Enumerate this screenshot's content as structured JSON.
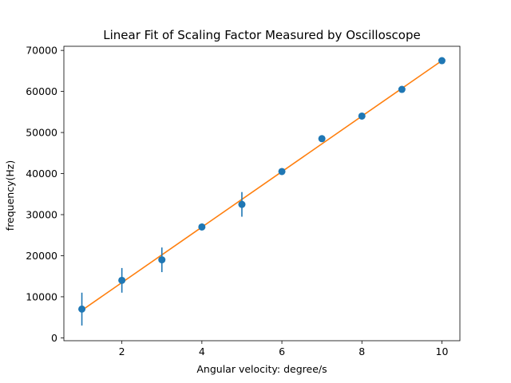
{
  "chart_data": {
    "type": "scatter",
    "title": "Linear Fit of Scaling Factor Measured by Oscilloscope",
    "xlabel": "Angular velocity: degree/s",
    "ylabel": "frequency(Hz)",
    "xlim": [
      0.55,
      10.45
    ],
    "ylim": [
      -700,
      71000
    ],
    "xticks": [
      2,
      4,
      6,
      8,
      10
    ],
    "xtick_labels": [
      "2",
      "4",
      "6",
      "8",
      "10"
    ],
    "yticks": [
      0,
      10000,
      20000,
      30000,
      40000,
      50000,
      60000,
      70000
    ],
    "ytick_labels": [
      "0",
      "10000",
      "20000",
      "30000",
      "40000",
      "50000",
      "60000",
      "70000"
    ],
    "grid": false,
    "series": [
      {
        "kind": "errorbar",
        "color": "#1f77b4",
        "x": [
          1,
          2,
          3,
          4,
          5,
          6,
          7,
          8,
          9,
          10
        ],
        "y": [
          7000,
          14000,
          19000,
          27000,
          32500,
          40500,
          48500,
          54000,
          60500,
          67500
        ],
        "yerr": [
          4000,
          3000,
          3000,
          800,
          3000,
          800,
          500,
          500,
          500,
          500
        ]
      },
      {
        "kind": "line",
        "color": "#ff7f0e",
        "x": [
          1,
          10
        ],
        "y": [
          6700,
          67500
        ]
      }
    ]
  }
}
